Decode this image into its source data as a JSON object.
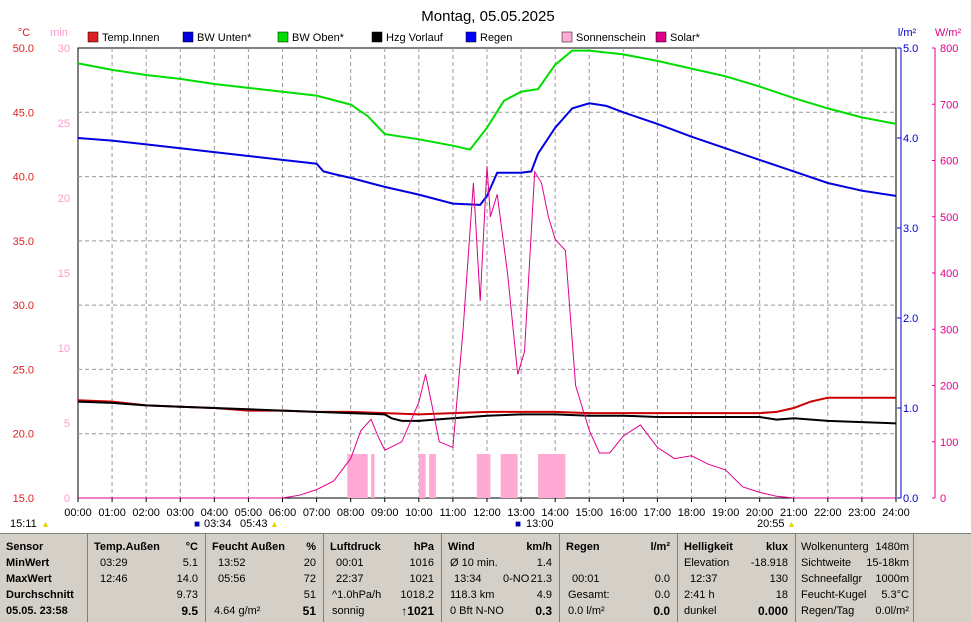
{
  "chart_data": {
    "type": "line",
    "title": "Montag, 05.05.2025",
    "x_ticks": [
      "00:00",
      "01:00",
      "02:00",
      "03:00",
      "04:00",
      "05:00",
      "06:00",
      "07:00",
      "08:00",
      "09:00",
      "10:00",
      "11:00",
      "12:00",
      "13:00",
      "14:00",
      "15:00",
      "16:00",
      "17:00",
      "18:00",
      "19:00",
      "20:00",
      "21:00",
      "22:00",
      "23:00",
      "24:00"
    ],
    "left_axis": {
      "label": "°C",
      "min": 15.0,
      "max": 50.0,
      "ticks": [
        "15.0",
        "20.0",
        "25.0",
        "30.0",
        "35.0",
        "40.0",
        "45.0",
        "50.0"
      ]
    },
    "min_axis": {
      "label": "min",
      "min": 0,
      "max": 30,
      "ticks": [
        "0",
        "5",
        "10",
        "15",
        "20",
        "25",
        "30"
      ]
    },
    "rain_axis": {
      "label": "l/m²",
      "min": 0,
      "max": 5,
      "ticks": [
        "0.0",
        "1.0",
        "2.0",
        "3.0",
        "4.0",
        "5.0"
      ]
    },
    "solar_axis": {
      "label": "W/m²",
      "min": 0,
      "max": 800,
      "ticks": [
        "0",
        "100",
        "200",
        "300",
        "400",
        "500",
        "600",
        "700",
        "800"
      ]
    },
    "legend": [
      {
        "name": "Temp.Innen",
        "color": "#e02020"
      },
      {
        "name": "BW Unten*",
        "color": "#0000e0"
      },
      {
        "name": "BW Oben*",
        "color": "#00dd00"
      },
      {
        "name": "Hzg Vorlauf",
        "color": "#000000"
      },
      {
        "name": "Regen",
        "color": "#0000ff"
      },
      {
        "name": "Sonnenschein",
        "color": "#ffaad4"
      },
      {
        "name": "Solar*",
        "color": "#e0008c"
      }
    ],
    "series": [
      {
        "name": "Temp.Innen",
        "color": "#cc0000",
        "axis": "left",
        "x": [
          0,
          1,
          2,
          3,
          4,
          5,
          6,
          7,
          8,
          9,
          10,
          11,
          12,
          13,
          14,
          15,
          16,
          17,
          18,
          19,
          20,
          20.5,
          21,
          21.5,
          22,
          23,
          24
        ],
        "y": [
          22.6,
          22.5,
          22.2,
          22.1,
          22.0,
          21.8,
          21.8,
          21.7,
          21.7,
          21.6,
          21.5,
          21.6,
          21.7,
          21.7,
          21.7,
          21.6,
          21.6,
          21.6,
          21.6,
          21.6,
          21.6,
          21.7,
          22.0,
          22.5,
          22.8,
          22.8,
          22.8
        ]
      },
      {
        "name": "Hzg Vorlauf",
        "color": "#000000",
        "axis": "left",
        "x": [
          0,
          1,
          2,
          3,
          4,
          5,
          6,
          7,
          8,
          9,
          9.2,
          9.5,
          10,
          11,
          12,
          13,
          14,
          15,
          16,
          17,
          18,
          19,
          20,
          20.5,
          21,
          22,
          23,
          24
        ],
        "y": [
          22.5,
          22.4,
          22.2,
          22.1,
          22.0,
          21.9,
          21.8,
          21.7,
          21.6,
          21.5,
          21.2,
          21.0,
          21.0,
          21.2,
          21.4,
          21.5,
          21.5,
          21.4,
          21.4,
          21.3,
          21.3,
          21.3,
          21.3,
          21.1,
          21.2,
          21.0,
          20.9,
          20.8
        ]
      },
      {
        "name": "BW Oben*",
        "color": "#00dd00",
        "axis": "left",
        "x": [
          0,
          1,
          2,
          3,
          4,
          5,
          6,
          7,
          8,
          8.5,
          9,
          10,
          11,
          11.5,
          12,
          12.5,
          13,
          13.5,
          14,
          14.5,
          15,
          16,
          17,
          18,
          19,
          20,
          21,
          22,
          23,
          24
        ],
        "y": [
          48.8,
          48.3,
          47.9,
          47.6,
          47.2,
          46.9,
          46.6,
          46.3,
          45.6,
          44.7,
          43.3,
          42.9,
          42.4,
          42.1,
          43.8,
          45.9,
          46.6,
          46.8,
          48.7,
          49.8,
          49.8,
          49.5,
          49.0,
          48.4,
          47.8,
          47.0,
          46.1,
          45.3,
          44.6,
          44.1
        ]
      },
      {
        "name": "BW Unten*",
        "color": "#0000e0",
        "axis": "left",
        "x": [
          0,
          1,
          2,
          3,
          4,
          5,
          6,
          7,
          7.2,
          7.5,
          8,
          9,
          10,
          11,
          11.8,
          12,
          12.3,
          13,
          13.3,
          13.5,
          14,
          14.5,
          15,
          15.5,
          16,
          17,
          18,
          19,
          20,
          21,
          22,
          23,
          24
        ],
        "y": [
          43.0,
          42.8,
          42.5,
          42.2,
          41.9,
          41.6,
          41.3,
          41.0,
          40.4,
          40.2,
          39.9,
          39.2,
          38.6,
          37.9,
          37.8,
          38.5,
          40.3,
          40.3,
          40.4,
          41.8,
          43.8,
          45.3,
          45.7,
          45.5,
          45.0,
          44.1,
          43.1,
          42.2,
          41.3,
          40.4,
          39.5,
          38.9,
          38.5
        ]
      },
      {
        "name": "Solar*",
        "color": "#e0008c",
        "axis": "solar",
        "x": [
          0,
          6,
          6.5,
          7,
          7.5,
          8,
          8.3,
          8.6,
          8.8,
          9,
          9.5,
          10,
          10.2,
          10.4,
          10.6,
          11,
          11.3,
          11.6,
          11.8,
          12,
          12.1,
          12.3,
          12.6,
          12.9,
          13.1,
          13.4,
          13.6,
          13.8,
          14,
          14.3,
          14.6,
          15,
          15.3,
          15.6,
          16,
          16.5,
          17,
          17.5,
          18,
          18.5,
          19,
          19.5,
          20,
          20.5,
          21,
          24
        ],
        "y": [
          0,
          0,
          5,
          15,
          30,
          70,
          120,
          140,
          110,
          85,
          100,
          170,
          220,
          160,
          100,
          90,
          300,
          560,
          350,
          590,
          500,
          540,
          400,
          220,
          260,
          580,
          560,
          500,
          460,
          440,
          200,
          120,
          80,
          80,
          110,
          130,
          90,
          70,
          75,
          60,
          50,
          20,
          10,
          3,
          0,
          0
        ]
      }
    ],
    "sunshine_bars": [
      [
        7.9,
        8.5
      ],
      [
        8.6,
        8.7
      ],
      [
        10.0,
        10.2
      ],
      [
        10.3,
        10.5
      ],
      [
        11.7,
        12.1
      ],
      [
        12.4,
        12.9
      ],
      [
        13.5,
        14.3
      ]
    ],
    "markers": {
      "sunrise": "05:43",
      "sunset": "20:55",
      "min_time": "03:34",
      "max_time": "13:00",
      "now": "15:11"
    }
  },
  "panel": {
    "sensor": {
      "header": "Sensor",
      "min": "MinWert",
      "max": "MaxWert",
      "avg": "Durchschnitt",
      "date": "05.05. 23:58"
    },
    "temp": {
      "header": "Temp.Außen",
      "unit": "°C",
      "min_time": "03:29",
      "min_val": "5.1",
      "max_time": "12:46",
      "max_val": "14.0",
      "avg": "9.73",
      "current": "9.5"
    },
    "humidity": {
      "header": "Feucht Außen",
      "unit": "%",
      "min_time": "13:52",
      "min_val": "20",
      "max_time": "05:56",
      "max_val": "72",
      "avg": "51",
      "abs": "4.64 g/m²",
      "current": "51"
    },
    "pressure": {
      "header": "Luftdruck",
      "unit": "hPa",
      "min_time": "00:01",
      "min_val": "1016",
      "max_time": "22:37",
      "max_val": "1021",
      "trend_label": "^1.0hPa/h",
      "trend_val": "1018.2",
      "forecast": "sonnig",
      "current": "↑1021"
    },
    "wind": {
      "header": "Wind",
      "unit": "km/h",
      "r1_label": "Ø 10 min.",
      "r1_val": "1.4",
      "r2_time": "13:34",
      "r2_dir": "0-NO",
      "r2_val": "21.3",
      "r3_dist": "118.3 km",
      "r3_val": "4.9",
      "r4_label": "0 Bft N-NO",
      "current": "0.3"
    },
    "rain": {
      "header": "Regen",
      "unit": "l/m²",
      "r2_time": "00:01",
      "r2_val": "0.0",
      "r3_label": "Gesamt:",
      "r3_val": "0.0",
      "r4_label": "0.0 l/m²",
      "current": "0.0"
    },
    "light": {
      "header": "Helligkeit",
      "unit": "klux",
      "r1_label": "Elevation",
      "r1_val": "-18.918",
      "r2_time": "12:37",
      "r2_val": "130",
      "r3_label": "2:41 h",
      "r3_val": "18",
      "r4_label": "dunkel",
      "current": "0.000"
    },
    "cloud": {
      "r0_label": "Wolkenunterg",
      "r0_val": "1480m",
      "r1_label": "Sichtweite",
      "r1_val": "15-18km",
      "r2_label": "Schneefallgr",
      "r2_val": "1000m",
      "r3_label": "Feucht-Kugel",
      "r3_val": "5.3°C",
      "r4_label": "Regen/Tag",
      "r4_val": "0.0l/m²"
    }
  }
}
